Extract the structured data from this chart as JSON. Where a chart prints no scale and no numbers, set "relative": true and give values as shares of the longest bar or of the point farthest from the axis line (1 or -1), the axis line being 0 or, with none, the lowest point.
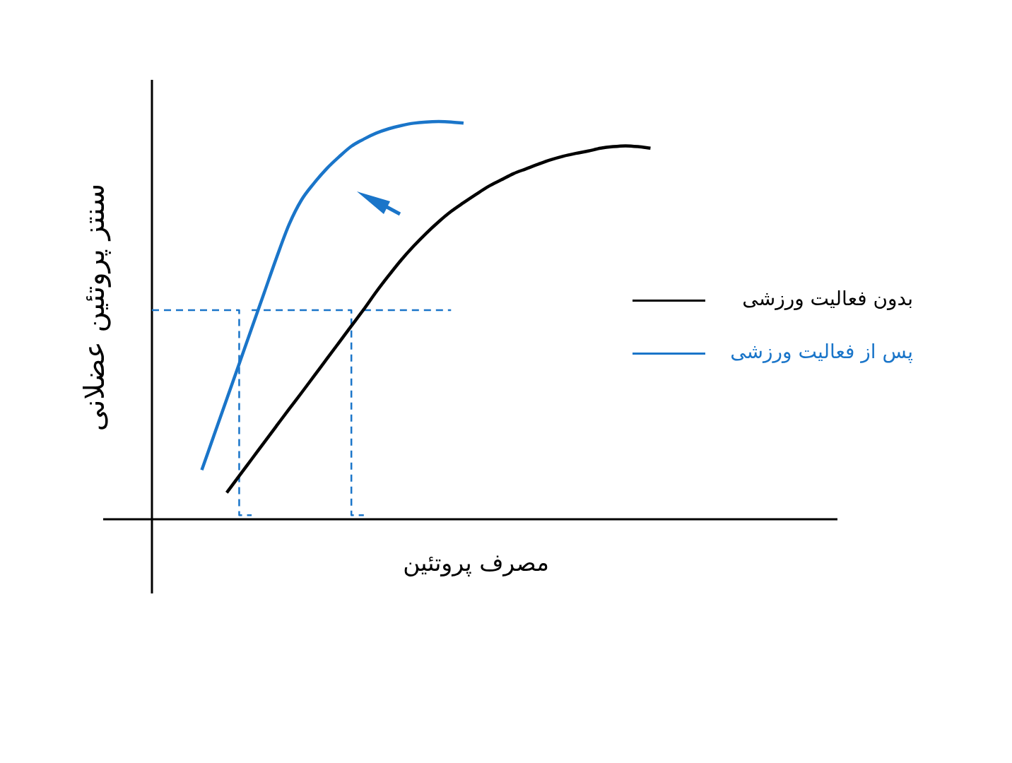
{
  "chart_data": {
    "type": "line",
    "relative": true,
    "xlabel": "مصرف پروتئین",
    "ylabel": "سنتز پروتئین عضلانی",
    "legend": "right",
    "marker": "none",
    "categories": [
      null,
      null,
      null,
      null,
      null,
      null,
      null,
      null,
      null,
      null,
      null,
      null,
      null,
      null,
      null,
      null,
      null,
      null,
      null,
      null,
      null,
      null,
      null,
      null,
      null,
      null,
      null,
      null,
      null,
      null,
      null,
      null,
      null,
      null,
      null,
      null,
      null,
      null,
      null,
      null,
      null,
      null,
      null,
      null,
      null,
      null,
      null,
      null,
      null,
      null,
      null,
      null,
      null,
      null,
      null,
      null
    ],
    "series": [
      {
        "name": "بدون فعالیت ورزشی",
        "color": "#000000",
        "values": [
          null,
          null,
          null,
          null,
          null,
          null,
          0.067,
          0.109,
          0.151,
          0.193,
          0.235,
          0.277,
          0.318,
          0.36,
          0.402,
          0.444,
          0.486,
          0.528,
          0.572,
          0.613,
          0.652,
          0.687,
          0.719,
          0.748,
          0.774,
          0.796,
          0.817,
          0.837,
          0.853,
          0.869,
          0.881,
          0.893,
          0.904,
          0.913,
          0.92,
          0.926,
          0.933,
          0.937,
          0.939,
          0.937,
          0.933,
          null,
          null,
          null,
          null,
          null,
          null,
          null,
          null,
          null,
          null,
          null,
          null,
          null,
          null,
          null
        ]
      },
      {
        "name": "پس از فعالیت ورزشی",
        "color": "#1a75c9",
        "values": [
          null,
          null,
          null,
          null,
          0.124,
          0.213,
          0.302,
          0.391,
          0.48,
          0.569,
          0.658,
          0.741,
          0.803,
          0.845,
          0.881,
          0.911,
          0.938,
          0.956,
          0.971,
          0.982,
          0.99,
          0.996,
          0.999,
          1.0,
          0.999,
          0.996,
          null,
          null,
          null,
          null,
          null,
          null,
          null,
          null,
          null,
          null,
          null,
          null,
          null,
          null,
          null,
          null,
          null,
          null,
          null,
          null,
          null,
          null,
          null,
          null,
          null,
          null,
          null,
          null,
          null,
          null
        ]
      },
      {
        "type": "step",
        "color": "#1a75c9",
        "line_style": "dashed",
        "values": [
          0.526,
          0.526,
          0.526,
          0.526,
          0.526,
          0.526,
          0.526,
          0.526,
          0.01,
          null,
          null,
          null,
          null,
          null,
          null,
          null,
          null,
          null,
          null,
          null,
          null,
          null,
          null,
          null,
          null,
          null,
          null,
          null,
          null,
          null,
          null,
          null,
          null,
          null,
          null,
          null,
          null,
          null,
          null,
          null,
          null,
          null,
          null,
          null,
          null,
          null,
          null,
          null,
          null,
          null,
          null,
          null,
          null,
          null,
          null,
          null
        ]
      },
      {
        "type": "step",
        "color": "#1a75c9",
        "line_style": "dashed",
        "values": [
          null,
          null,
          null,
          null,
          null,
          null,
          null,
          null,
          0.526,
          0.526,
          0.526,
          0.526,
          0.526,
          0.526,
          0.526,
          0.526,
          0.526,
          0.01,
          null,
          null,
          null,
          null,
          null,
          null,
          null,
          null,
          null,
          null,
          null,
          null,
          null,
          null,
          null,
          null,
          null,
          null,
          null,
          null,
          null,
          null,
          null,
          null,
          null,
          null,
          null,
          null,
          null,
          null,
          null,
          null,
          null,
          null,
          null,
          null,
          null,
          null
        ]
      },
      {
        "type": "step",
        "color": "#1a75c9",
        "line_style": "dashed",
        "values": [
          null,
          null,
          null,
          null,
          null,
          null,
          null,
          null,
          null,
          null,
          null,
          null,
          null,
          null,
          null,
          null,
          null,
          0.526,
          0.526,
          0.526,
          0.526,
          0.526,
          0.526,
          0.526,
          0.526,
          null,
          null,
          null,
          null,
          null,
          null,
          null,
          null,
          null,
          null,
          null,
          null,
          null,
          null,
          null,
          null,
          null,
          null,
          null,
          null,
          null,
          null,
          null,
          null,
          null,
          null,
          null,
          null,
          null,
          null,
          null
        ]
      }
    ]
  }
}
